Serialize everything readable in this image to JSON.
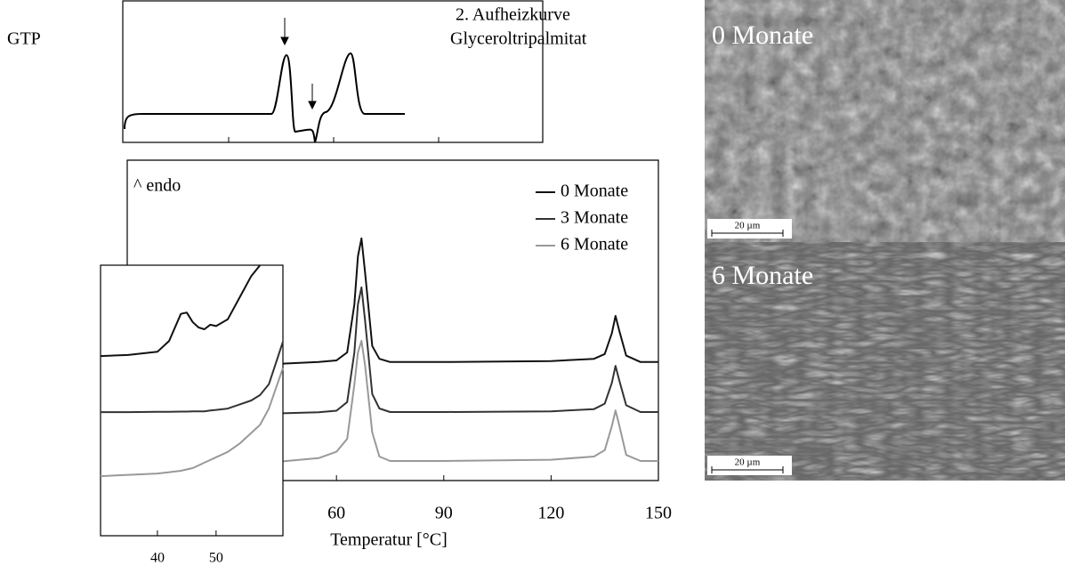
{
  "figure_label": "GTP",
  "chart_data": [
    {
      "type": "line",
      "annotations": [
        "2. Aufheizkurve",
        "Glyceroltripalmitat"
      ]
    },
    {
      "type": "line",
      "annotation": "^ endo",
      "xlabel": "Temperatur [°C]",
      "xlim": [
        1.5,
        150
      ],
      "xticks": [
        60,
        90,
        120,
        150
      ],
      "ylim": [
        0,
        100
      ],
      "x": [
        45,
        55,
        60,
        63,
        65,
        66,
        67,
        68,
        70,
        72,
        75,
        90,
        120,
        132,
        135,
        137,
        138,
        139,
        141,
        145,
        150
      ],
      "series": [
        {
          "name": "0 Monate",
          "color": "#111111",
          "values": [
            36.5,
            37,
            37.5,
            40,
            55,
            70,
            75.6,
            65,
            42,
            38,
            37,
            37,
            37.3,
            38,
            39.5,
            46,
            51.4,
            47,
            39,
            37,
            37
          ]
        },
        {
          "name": "3 Monate",
          "color": "#333333",
          "values": [
            21,
            21.3,
            21.8,
            24.5,
            40,
            55,
            60.3,
            50,
            27,
            22.5,
            21.4,
            21.4,
            21.6,
            22.3,
            24,
            30.5,
            35.8,
            31.5,
            23.5,
            21.4,
            21.4
          ]
        },
        {
          "name": "6 Monate",
          "color": "#999999",
          "values": [
            6,
            7,
            9,
            13,
            30,
            40,
            43.6,
            36,
            15,
            7.5,
            6.1,
            6.1,
            6.5,
            7.5,
            9.5,
            17,
            21.9,
            17.5,
            8,
            6.1,
            6.1
          ]
        }
      ]
    },
    {
      "type": "line",
      "xlim": [
        30.3,
        61.4
      ],
      "xticks": [
        40,
        50
      ],
      "ylim": [
        0,
        100
      ],
      "x": [
        30.3,
        35,
        40,
        42,
        44,
        45,
        46,
        47,
        48,
        49,
        50,
        52,
        54,
        56,
        57.5,
        59,
        61.4
      ],
      "series": [
        {
          "name": "0 Monate",
          "color": "#111111",
          "values": [
            66.4,
            66.8,
            68,
            72,
            82,
            82.5,
            79,
            77,
            76.3,
            78,
            77.5,
            80,
            88,
            96,
            100,
            null,
            null
          ]
        },
        {
          "name": "3 Monate",
          "color": "#333333",
          "values": [
            45.7,
            45.7,
            45.8,
            45.8,
            45.9,
            45.9,
            46,
            46,
            46,
            46.3,
            46.5,
            47,
            48.5,
            50,
            52,
            56,
            71.7
          ]
        },
        {
          "name": "6 Monate",
          "color": "#999999",
          "values": [
            22,
            22.5,
            23,
            23.5,
            24,
            24.5,
            25,
            26,
            27,
            28,
            29,
            31,
            34,
            38,
            41,
            47,
            62
          ]
        }
      ]
    }
  ],
  "images": [
    {
      "label": "0 Monate",
      "scale": "20 µm"
    },
    {
      "label": "6 Monate",
      "scale": "20 µm"
    }
  ]
}
